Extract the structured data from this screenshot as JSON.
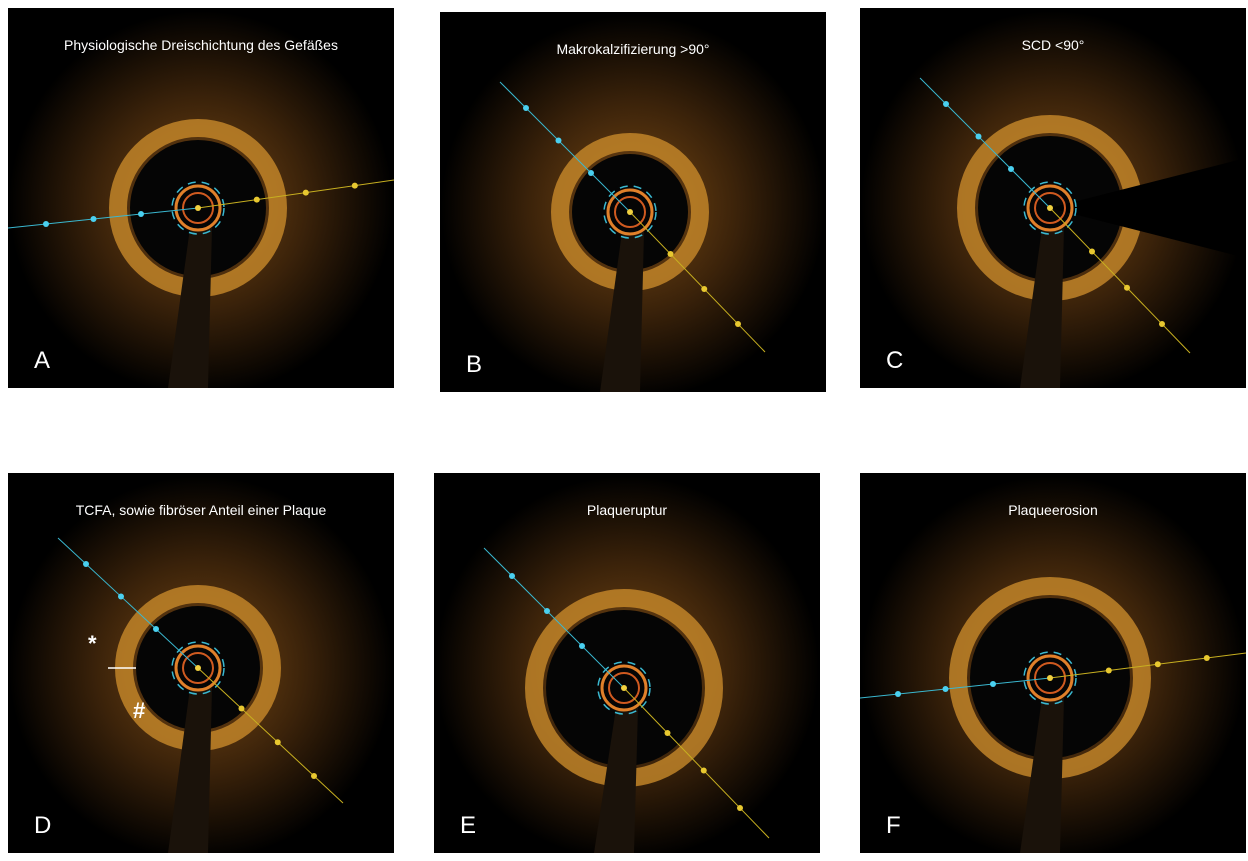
{
  "panels": [
    {
      "title": "Physiologische Dreischichtung des Gefäßes",
      "letter": "A"
    },
    {
      "title": "Makrokalzifizierung >90°",
      "letter": "B"
    },
    {
      "title": "SCD <90°",
      "letter": "C"
    },
    {
      "title": "TCFA, sowie fibröser Anteil einer Plaque",
      "letter": "D",
      "symbols": [
        "*",
        "#"
      ]
    },
    {
      "title": "Plaqueruptur",
      "letter": "E"
    },
    {
      "title": "Plaqueerosion",
      "letter": "F"
    }
  ]
}
